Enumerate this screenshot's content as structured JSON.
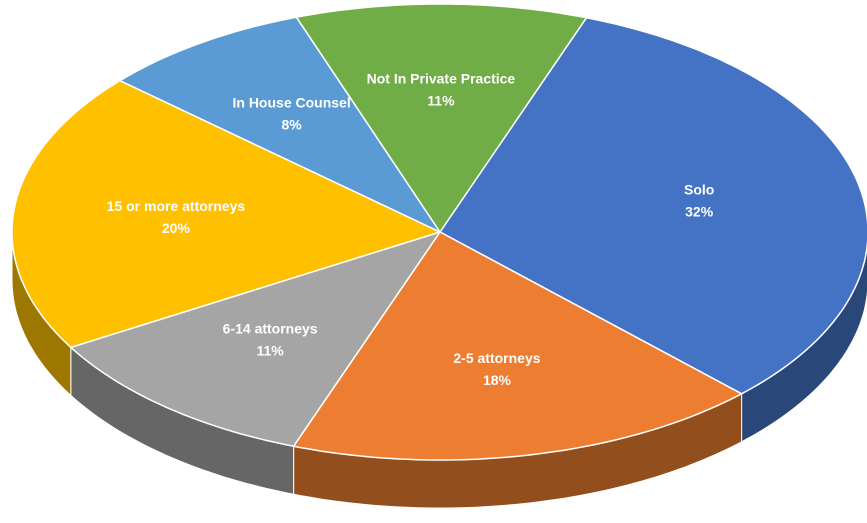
{
  "chart_data": {
    "type": "pie3d",
    "categories": [
      "Solo",
      "2-5 attorneys",
      "6-14 attorneys",
      "15 or more attorneys",
      "In House Counsel",
      "Not In Private Practice"
    ],
    "values": [
      32,
      18,
      11,
      20,
      8,
      11
    ],
    "value_labels": [
      "32%",
      "18%",
      "11%",
      "20%",
      "8%",
      "11%"
    ],
    "colors": [
      "#4472c4",
      "#ed7d31",
      "#a5a5a5",
      "#ffc000",
      "#5b9bd5",
      "#70ad47"
    ]
  }
}
